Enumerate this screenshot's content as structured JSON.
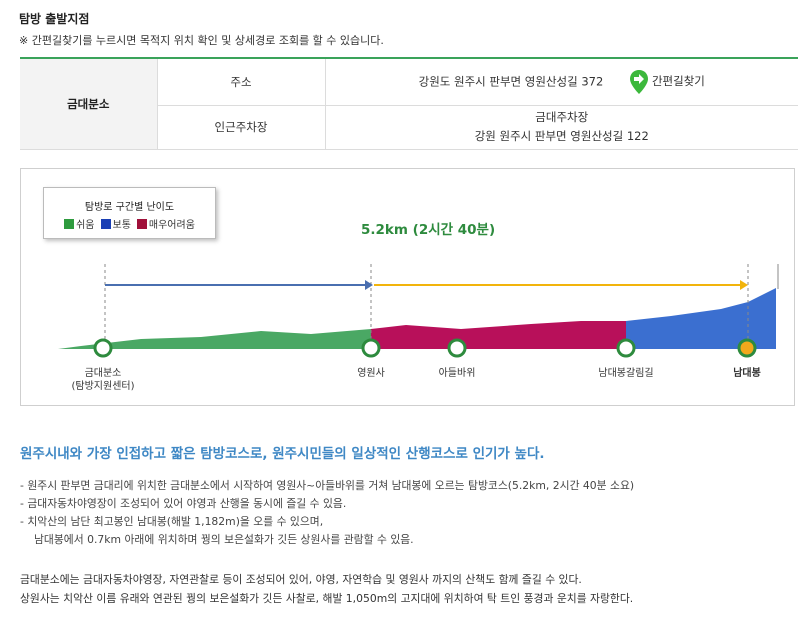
{
  "header": {
    "title": "탐방 출발지점",
    "note": "※ 간편길찾기를 누르시면 목적지 위치 확인 및 상세경로 조회를 할 수 있습니다."
  },
  "info_table": {
    "category": "금대분소",
    "rows": [
      {
        "label": "주소",
        "value": "강원도 원주시 판부면 영원산성길 372",
        "link": "간편길찾기",
        "link_icon": "green-map-pin-arrow-icon"
      },
      {
        "label": "인근주차장",
        "value_line1": "금대주차장",
        "value_line2": "강원 원주시 판부면 영원산성길 122"
      }
    ]
  },
  "legend": {
    "title": "탐방로 구간별 난이도",
    "items": [
      {
        "label": "쉬움",
        "color": "#2e9b3e"
      },
      {
        "label": "보통",
        "color": "#1a3fb4"
      },
      {
        "label": "매우어려움",
        "color": "#a0103a"
      }
    ]
  },
  "course": {
    "distance_label": "5.2km (2시간 40분)",
    "colors": {
      "easy": "#4aa864",
      "hard": "#b8105a",
      "normal": "#3b6fd0",
      "arrow_blue": "#4a6fb0",
      "arrow_yellow": "#f2b40c"
    },
    "waypoints": [
      {
        "line1": "금대분소",
        "line2": "(탐방지원센터)",
        "bold": false
      },
      {
        "line1": "영원사",
        "bold": false
      },
      {
        "line1": "아들바위",
        "bold": false
      },
      {
        "line1": "남대봉갈림길",
        "bold": false
      },
      {
        "line1": "남대봉",
        "bold": true
      }
    ]
  },
  "description": {
    "headline": "원주시내와 가장 인접하고 짧은 탐방코스로, 원주시민들의 일상적인 산행코스로 인기가 높다.",
    "bullets": [
      "- 원주시 판부면 금대리에 위치한 금대분소에서 시작하여 영원사~아들바위를 거쳐 남대봉에 오르는 탐방코스(5.2km, 2시간 40분 소요)",
      "- 금대자동차야영장이 조성되어 있어 야영과 산행을 동시에 즐길 수 있음.",
      "- 치악산의 남단 최고봉인 남대봉(해발 1,182m)을 오를 수 있으며,",
      "남대봉에서 0.7km 아래에 위치하며 꿩의 보은설화가 깃든 상원사를 관람할 수 있음."
    ],
    "paragraph1": "금대분소에는 금대자동차야영장, 자연관찰로 등이 조성되어 있어, 야영, 자연학습 및 영원사 까지의 산책도 함께 즐길 수 있다.",
    "paragraph2": "상원사는 치악산 이름 유래와 연관된 꿩의 보은설화가 깃든 사찰로, 해발 1,050m의 고지대에 위치하여 탁 트인 풍경과 운치를 자랑한다."
  }
}
